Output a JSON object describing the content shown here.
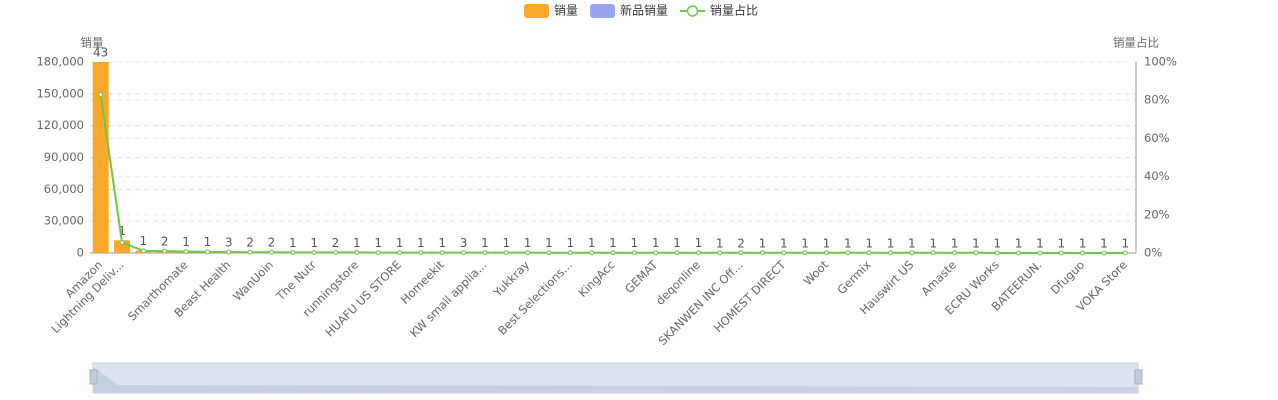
{
  "chart_data": {
    "type": "bar",
    "legend_position": "top",
    "y_axis_label": "销量",
    "y2_axis_label": "销量占比",
    "categories": [
      "Amazon",
      "Lightning Deliv...",
      null,
      null,
      "Smarthomate",
      null,
      "Beast Health",
      null,
      "WanUoin",
      null,
      "The Nutr",
      null,
      "runningstore",
      null,
      "HUAFU US STORE",
      null,
      "Homeekit",
      null,
      "KW small applia...",
      null,
      "Yukkray",
      null,
      "Best Selections...",
      null,
      "KingAcc",
      null,
      "GEMAT",
      null,
      "deqonline",
      null,
      "SKANWEN INC Off...",
      null,
      "HOMEST DIRECT",
      null,
      "Woot",
      null,
      "Germix",
      null,
      "Hauswirt US",
      null,
      "Amaste",
      null,
      "ECRU Works",
      null,
      "BATEERUN.",
      null,
      "Dfuguo",
      null,
      "VOKA Store"
    ],
    "series": [
      {
        "name": "销量",
        "type": "bar",
        "color": "#f9a82b",
        "values": [
          180000,
          12000,
          2300,
          2100,
          1600,
          1300,
          1100,
          900,
          800,
          700,
          650,
          600,
          560,
          520,
          480,
          450,
          420,
          400,
          380,
          360,
          340,
          320,
          300,
          290,
          280,
          270,
          260,
          250,
          240,
          230,
          220,
          210,
          200,
          190,
          180,
          170,
          160,
          150,
          140,
          130,
          120,
          110,
          100,
          95,
          90,
          85,
          80,
          75,
          70
        ]
      },
      {
        "name": "新品销量",
        "type": "bar",
        "color": "#9aa5f0",
        "values": [
          43,
          1,
          1,
          2,
          1,
          1,
          3,
          2,
          2,
          1,
          1,
          2,
          1,
          1,
          1,
          1,
          1,
          3,
          1,
          1,
          1,
          1,
          1,
          1,
          1,
          1,
          1,
          1,
          1,
          1,
          2,
          1,
          1,
          1,
          1,
          1,
          1,
          1,
          1,
          1,
          1,
          1,
          1,
          1,
          1,
          1,
          1,
          1,
          1
        ]
      },
      {
        "name": "销量占比",
        "type": "line",
        "axis": "y2",
        "color": "#6fc54e",
        "values": [
          83,
          5.5,
          1.1,
          1,
          0.7,
          0.6,
          0.5,
          0.4,
          0.4,
          0.3,
          0.3,
          0.3,
          0.3,
          0.2,
          0.2,
          0.2,
          0.2,
          0.2,
          0.2,
          0.2,
          0.2,
          0.1,
          0.1,
          0.1,
          0.1,
          0.1,
          0.1,
          0.1,
          0.1,
          0.1,
          0.1,
          0.1,
          0.1,
          0.1,
          0.1,
          0.1,
          0.1,
          0.1,
          0.1,
          0.1,
          0.1,
          0.1,
          0,
          0,
          0,
          0,
          0,
          0,
          0
        ]
      }
    ],
    "ylim": [
      0,
      180000
    ],
    "yticks": [
      0,
      {
        "value": 30000,
        "label": "30,000"
      },
      {
        "value": 60000,
        "label": "60,000"
      },
      {
        "value": 90000,
        "label": "90,000"
      },
      {
        "value": 120000,
        "label": "120,000"
      },
      {
        "value": 150000,
        "label": "150,000"
      },
      {
        "value": 180000,
        "label": "180,000"
      }
    ],
    "y2lim": [
      0,
      100
    ],
    "y2ticks": [
      {
        "value": 0,
        "label": "0%"
      },
      {
        "value": 20,
        "label": "20%"
      },
      {
        "value": 40,
        "label": "40%"
      },
      {
        "value": 60,
        "label": "60%"
      },
      {
        "value": 80,
        "label": "80%"
      },
      {
        "value": 100,
        "label": "100%"
      }
    ],
    "grid": true
  }
}
